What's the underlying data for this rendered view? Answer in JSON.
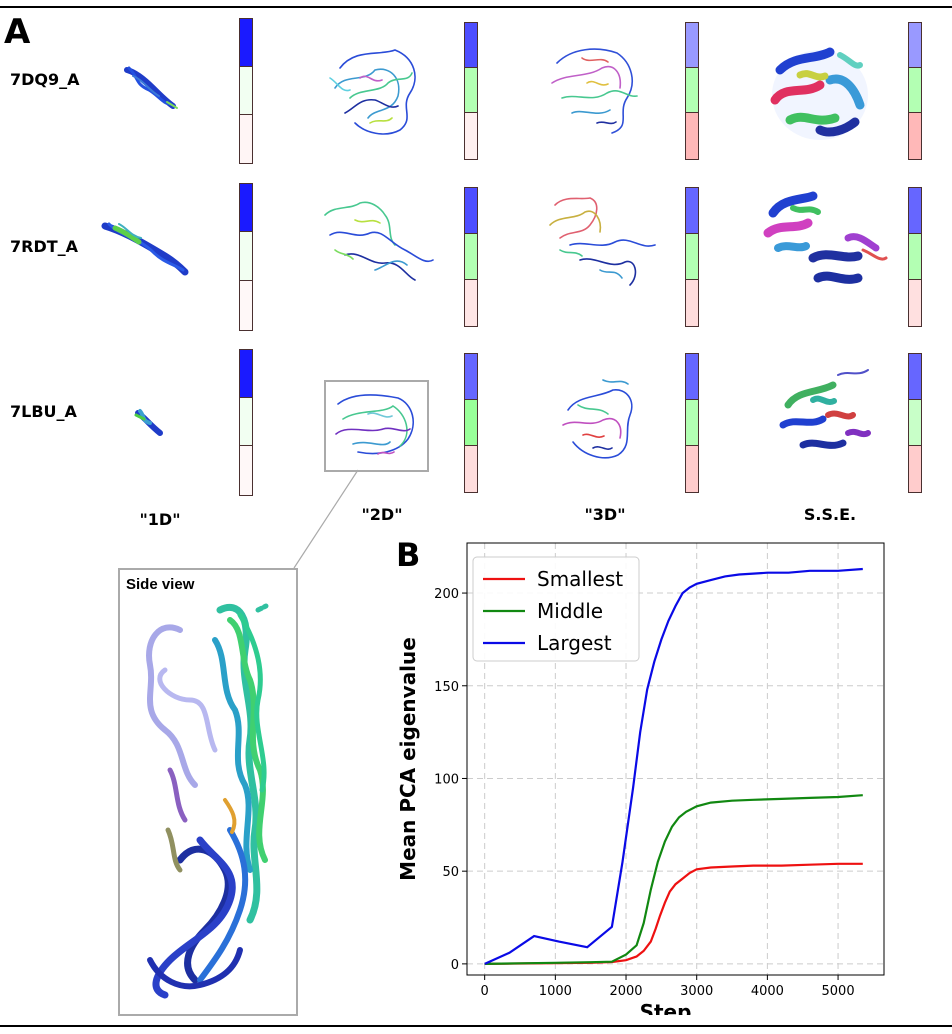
{
  "panel_a": {
    "letter": "A",
    "rows": [
      {
        "label": "7DQ9_A",
        "bars": [
          [
            "#1a1aff",
            "#f2fff2",
            "#fff5f5"
          ],
          [
            "#4d4dff",
            "#b3ffb3",
            "#fff0f0"
          ],
          [
            "#9999ff",
            "#b3ffb3",
            "#ffb8b8"
          ],
          [
            "#9999ff",
            "#b3ffb3",
            "#ffb8b8"
          ]
        ]
      },
      {
        "label": "7RDT_A",
        "bars": [
          [
            "#1a1aff",
            "#f2fff2",
            "#fff8f8"
          ],
          [
            "#4d4dff",
            "#b3ffb3",
            "#ffe6e6"
          ],
          [
            "#6666ff",
            "#b3ffb3",
            "#ffdddd"
          ],
          [
            "#6666ff",
            "#b3ffb3",
            "#ffe0e0"
          ]
        ]
      },
      {
        "label": "7LBU_A",
        "bars": [
          [
            "#1a1aff",
            "#f2fff2",
            "#fff8f8"
          ],
          [
            "#6666ff",
            "#99ff99",
            "#ffdddd"
          ],
          [
            "#6666ff",
            "#b3ffb3",
            "#ffcccc"
          ],
          [
            "#6666ff",
            "#c8ffc8",
            "#ffcccc"
          ]
        ]
      }
    ],
    "columns": [
      "\"1D\"",
      "\"2D\"",
      "\"3D\"",
      "S.S.E."
    ]
  },
  "side_view": {
    "title": "Side view"
  },
  "panel_b": {
    "letter": "B"
  },
  "chart_data": {
    "type": "line",
    "xlabel": "Step",
    "ylabel": "Mean PCA eigenvalue",
    "xlim": [
      -250,
      5650
    ],
    "ylim": [
      -6,
      227
    ],
    "xticks": [
      0,
      1000,
      2000,
      3000,
      4000,
      5000
    ],
    "yticks": [
      0,
      50,
      100,
      150,
      200
    ],
    "grid": true,
    "legend": "top-left",
    "series": [
      {
        "name": "Smallest",
        "color": "#ee1111",
        "x": [
          0,
          500,
          1000,
          1500,
          1800,
          2000,
          2150,
          2250,
          2350,
          2420,
          2480,
          2550,
          2620,
          2700,
          2800,
          2900,
          3000,
          3200,
          3500,
          3800,
          4200,
          4600,
          5000,
          5350
        ],
        "y": [
          0,
          0.2,
          0.4,
          0.6,
          1,
          2,
          4,
          7,
          12,
          19,
          26,
          33,
          39,
          43,
          46,
          49,
          51,
          52,
          52.5,
          53,
          53,
          53.5,
          54,
          54
        ]
      },
      {
        "name": "Middle",
        "color": "#118811",
        "x": [
          0,
          500,
          1000,
          1500,
          1800,
          2000,
          2150,
          2250,
          2350,
          2450,
          2550,
          2650,
          2750,
          2850,
          3000,
          3200,
          3500,
          3800,
          4200,
          4600,
          5000,
          5350
        ],
        "y": [
          0,
          0.3,
          0.6,
          0.9,
          1.2,
          5,
          10,
          22,
          40,
          55,
          66,
          74,
          79,
          82,
          85,
          87,
          88,
          88.5,
          89,
          89.5,
          90,
          91
        ]
      },
      {
        "name": "Largest",
        "color": "#0a0ae6",
        "x": [
          0,
          350,
          700,
          1050,
          1450,
          1800,
          1950,
          2100,
          2200,
          2300,
          2400,
          2500,
          2600,
          2700,
          2800,
          2900,
          3000,
          3200,
          3400,
          3600,
          3800,
          4000,
          4300,
          4600,
          5000,
          5350
        ],
        "y": [
          0,
          6,
          15,
          12,
          9,
          20,
          55,
          95,
          125,
          148,
          163,
          175,
          185,
          193,
          200,
          203,
          205,
          207,
          209,
          210,
          210.5,
          211,
          211,
          212,
          212,
          213
        ]
      }
    ]
  }
}
